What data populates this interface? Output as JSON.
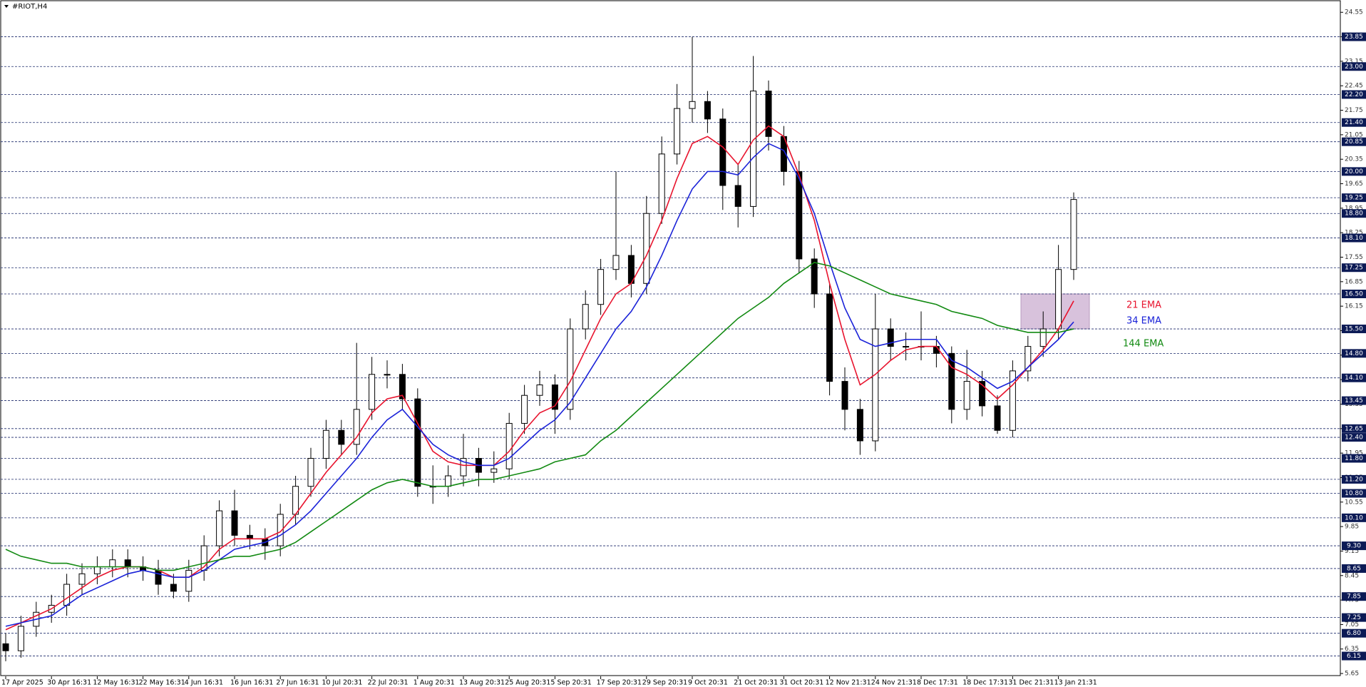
{
  "chart_data": {
    "type": "candlestick",
    "title": "#RIOT,H4",
    "categories": [
      "17 Apr 2025",
      null,
      null,
      "30 Apr 16:31",
      null,
      null,
      "12 May 16:31",
      null,
      null,
      "22 May 16:31",
      null,
      null,
      "4 Jun 16:31",
      null,
      null,
      "16 Jun 16:31",
      null,
      null,
      "27 Jun 16:31",
      null,
      null,
      "10 Jul 20:31",
      null,
      null,
      "22 Jul 20:31",
      null,
      null,
      "1 Aug 20:31",
      null,
      null,
      "13 Aug 20:31",
      null,
      null,
      "25 Aug 20:31",
      null,
      null,
      "5 Sep 20:31",
      null,
      null,
      "17 Sep 20:31",
      null,
      null,
      "29 Sep 20:31",
      null,
      null,
      "9 Oct 20:31",
      null,
      null,
      "21 Oct 20:31",
      null,
      null,
      "31 Oct 20:31",
      null,
      null,
      "12 Nov 21:31",
      null,
      null,
      "24 Nov 21:31",
      null,
      null,
      "8 Dec 17:31",
      null,
      null,
      "18 Dec 17:31",
      null,
      null,
      "31 Dec 21:31",
      null,
      null,
      "13 Jan 21:31",
      null
    ],
    "open": [
      6.5,
      6.3,
      7.0,
      7.4,
      7.6,
      8.2,
      8.5,
      8.7,
      8.9,
      8.7,
      8.6,
      8.2,
      8.0,
      8.6,
      9.3,
      10.3,
      9.6,
      9.5,
      9.3,
      10.2,
      11.0,
      11.8,
      12.6,
      12.2,
      13.2,
      14.2,
      14.2,
      13.5,
      11.0,
      11.0,
      11.3,
      11.8,
      11.4,
      11.5,
      12.8,
      13.6,
      13.9,
      13.2,
      15.5,
      16.2,
      17.2,
      17.6,
      16.8,
      18.8,
      20.5,
      21.8,
      22.0,
      21.5,
      19.6,
      19.0,
      22.3,
      21.0,
      20.0,
      17.5,
      16.5,
      14.0,
      13.2,
      12.3,
      15.5,
      15.0,
      15.0,
      15.0,
      14.8,
      13.2,
      14.0,
      13.3,
      12.6,
      14.3,
      15.0,
      15.5,
      17.2
    ],
    "high": [
      6.8,
      7.3,
      7.7,
      7.9,
      8.5,
      8.8,
      9.0,
      9.2,
      9.2,
      9.0,
      8.9,
      8.5,
      8.9,
      9.6,
      10.6,
      10.9,
      9.9,
      9.8,
      10.5,
      11.3,
      12.1,
      12.9,
      12.9,
      15.1,
      14.7,
      14.6,
      14.5,
      13.8,
      11.6,
      11.6,
      12.5,
      12.1,
      12.0,
      13.1,
      13.9,
      14.3,
      14.2,
      15.8,
      16.6,
      17.5,
      20.0,
      17.9,
      19.3,
      21.0,
      22.5,
      23.85,
      22.3,
      21.8,
      20.2,
      23.3,
      22.6,
      21.3,
      20.3,
      17.8,
      16.8,
      14.4,
      13.5,
      16.5,
      15.8,
      15.4,
      16.0,
      15.3,
      15.0,
      14.9,
      14.3,
      13.6,
      14.6,
      15.3,
      16.0,
      17.9,
      19.4
    ],
    "low": [
      6.0,
      6.1,
      6.7,
      7.1,
      7.3,
      7.9,
      8.2,
      8.4,
      8.4,
      8.3,
      7.9,
      7.8,
      7.7,
      8.3,
      9.0,
      9.3,
      9.2,
      8.9,
      9.0,
      9.9,
      10.7,
      11.5,
      11.9,
      11.9,
      12.9,
      13.8,
      13.2,
      10.7,
      10.5,
      10.7,
      11.0,
      11.0,
      11.1,
      11.2,
      12.5,
      13.3,
      12.5,
      12.9,
      15.2,
      15.9,
      16.9,
      16.4,
      16.5,
      18.5,
      20.2,
      21.4,
      21.1,
      18.9,
      18.4,
      18.7,
      20.6,
      19.6,
      17.1,
      16.1,
      13.6,
      12.6,
      11.9,
      12.0,
      14.6,
      14.6,
      14.6,
      14.4,
      12.8,
      12.9,
      13.0,
      12.5,
      12.4,
      14.0,
      14.7,
      15.2,
      16.9
    ],
    "close": [
      6.3,
      7.0,
      7.4,
      7.6,
      8.2,
      8.5,
      8.7,
      8.9,
      8.7,
      8.6,
      8.2,
      8.0,
      8.6,
      9.3,
      10.3,
      9.6,
      9.5,
      9.3,
      10.2,
      11.0,
      11.8,
      12.6,
      12.2,
      13.2,
      14.2,
      14.2,
      13.5,
      11.0,
      11.0,
      11.3,
      11.8,
      11.4,
      11.5,
      12.8,
      13.6,
      13.9,
      13.2,
      15.5,
      16.2,
      17.2,
      17.6,
      16.8,
      18.8,
      20.5,
      21.8,
      22.0,
      21.5,
      19.6,
      19.0,
      22.3,
      21.0,
      20.0,
      17.5,
      16.5,
      14.0,
      13.2,
      12.3,
      15.5,
      15.0,
      15.0,
      15.0,
      14.8,
      13.2,
      14.0,
      13.3,
      12.6,
      14.3,
      15.0,
      15.5,
      17.2,
      19.2
    ],
    "up_color": "#ffffff",
    "down_color": "#000000",
    "series": [
      {
        "name": "21 EMA",
        "color": "#e8142e",
        "values": [
          6.9,
          7.1,
          7.3,
          7.5,
          7.8,
          8.1,
          8.4,
          8.6,
          8.7,
          8.7,
          8.6,
          8.4,
          8.4,
          8.7,
          9.2,
          9.5,
          9.5,
          9.5,
          9.7,
          10.2,
          10.8,
          11.4,
          11.9,
          12.4,
          13.1,
          13.5,
          13.6,
          12.8,
          12.0,
          11.7,
          11.6,
          11.6,
          11.6,
          12.0,
          12.6,
          13.1,
          13.3,
          14.0,
          14.9,
          15.8,
          16.5,
          16.8,
          17.6,
          18.6,
          19.8,
          20.8,
          21.0,
          20.7,
          20.2,
          20.9,
          21.3,
          21.0,
          19.9,
          18.6,
          16.8,
          15.2,
          13.9,
          14.2,
          14.6,
          14.9,
          15.0,
          15.0,
          14.4,
          14.2,
          13.9,
          13.5,
          13.9,
          14.4,
          14.9,
          15.5,
          16.3
        ]
      },
      {
        "name": "34 EMA",
        "color": "#1a22d8",
        "values": [
          7.0,
          7.1,
          7.2,
          7.3,
          7.6,
          7.9,
          8.1,
          8.3,
          8.5,
          8.6,
          8.5,
          8.4,
          8.4,
          8.6,
          8.9,
          9.2,
          9.3,
          9.4,
          9.6,
          9.9,
          10.3,
          10.8,
          11.3,
          11.8,
          12.4,
          12.9,
          13.2,
          12.7,
          12.2,
          11.9,
          11.7,
          11.6,
          11.6,
          11.8,
          12.2,
          12.6,
          12.9,
          13.4,
          14.1,
          14.8,
          15.5,
          16.0,
          16.7,
          17.6,
          18.6,
          19.5,
          20.0,
          20.0,
          19.9,
          20.4,
          20.8,
          20.6,
          19.8,
          18.8,
          17.4,
          16.1,
          15.2,
          15.0,
          15.1,
          15.2,
          15.2,
          15.2,
          14.6,
          14.4,
          14.1,
          13.8,
          14.0,
          14.4,
          14.8,
          15.2,
          15.7
        ]
      },
      {
        "name": "144 EMA",
        "color": "#128a12",
        "values": [
          9.2,
          9.0,
          8.9,
          8.8,
          8.8,
          8.7,
          8.7,
          8.7,
          8.7,
          8.7,
          8.6,
          8.6,
          8.7,
          8.8,
          8.9,
          9.0,
          9.0,
          9.1,
          9.2,
          9.4,
          9.7,
          10.0,
          10.3,
          10.6,
          10.9,
          11.1,
          11.2,
          11.1,
          11.0,
          11.0,
          11.1,
          11.2,
          11.2,
          11.3,
          11.4,
          11.5,
          11.7,
          11.8,
          11.9,
          12.3,
          12.6,
          13.0,
          13.4,
          13.8,
          14.2,
          14.6,
          15.0,
          15.4,
          15.8,
          16.1,
          16.4,
          16.8,
          17.1,
          17.4,
          17.3,
          17.1,
          16.9,
          16.7,
          16.5,
          16.4,
          16.3,
          16.2,
          16.0,
          15.9,
          15.8,
          15.6,
          15.5,
          15.4,
          15.4,
          15.4,
          15.5
        ]
      }
    ],
    "ylim": [
      5.57,
      24.82
    ],
    "yticks": [
      24.55,
      23.85,
      23.15,
      22.45,
      21.75,
      21.05,
      20.35,
      19.65,
      18.95,
      18.25,
      17.55,
      16.85,
      16.15,
      15.45,
      14.75,
      14.05,
      13.35,
      12.65,
      11.95,
      11.25,
      10.55,
      9.85,
      9.15,
      8.45,
      7.75,
      7.05,
      6.35,
      5.65
    ],
    "levels": [
      23.85,
      {
        "value": 23,
        "label": "23.00"
      },
      {
        "value": 22.2,
        "label": "22.20"
      },
      {
        "value": 21.4,
        "label": "21.40"
      },
      20.85,
      {
        "value": 20,
        "label": "20.00"
      },
      19.25,
      {
        "value": 18.8,
        "label": "18.80"
      },
      {
        "value": 18.1,
        "label": "18.10"
      },
      17.25,
      {
        "value": 16.5,
        "label": "16.50"
      },
      {
        "value": 15.5,
        "label": "15.50"
      },
      {
        "value": 14.8,
        "label": "14.80"
      },
      {
        "value": 14.1,
        "label": "14.10"
      },
      13.45,
      12.65,
      {
        "value": 12.4,
        "label": "12.40"
      },
      {
        "value": 11.8,
        "label": "11.80"
      },
      {
        "value": 11.2,
        "label": "11.20"
      },
      {
        "value": 10.8,
        "label": "10.80"
      },
      {
        "value": 10.1,
        "label": "10.10"
      },
      {
        "value": 9.3,
        "label": "9.30"
      },
      8.65,
      7.85,
      7.25,
      {
        "value": 6.8,
        "label": "6.80"
      },
      6.15
    ],
    "highlight_zone": [
      15.5,
      16.5
    ]
  }
}
